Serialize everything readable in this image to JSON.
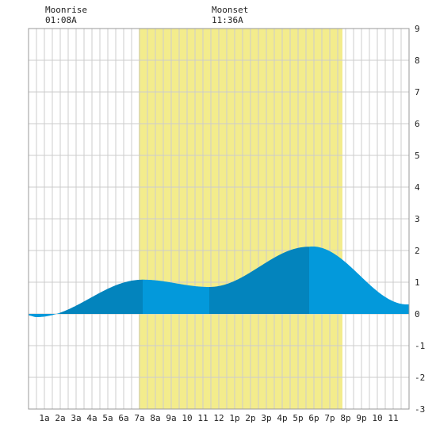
{
  "moon": {
    "rise_label": "Moonrise",
    "rise_time": "01:08A",
    "set_label": "Moonset",
    "set_time": "11:36A"
  },
  "colors": {
    "background": "#ffffff",
    "grid": "#cccccc",
    "daylight": "#f3ec8c",
    "tide_dark": "#0384bd",
    "tide_light": "#0399db"
  },
  "chart_data": {
    "type": "area",
    "title": "",
    "xlabel": "",
    "ylabel": "",
    "xlim": [
      0,
      24
    ],
    "ylim": [
      -3,
      9
    ],
    "y_ticks": [
      -3,
      -2,
      -1,
      0,
      1,
      2,
      3,
      4,
      5,
      6,
      7,
      8,
      9
    ],
    "x_ticks": [
      {
        "hour": 1,
        "label": "1a"
      },
      {
        "hour": 2,
        "label": "2a"
      },
      {
        "hour": 3,
        "label": "3a"
      },
      {
        "hour": 4,
        "label": "4a"
      },
      {
        "hour": 5,
        "label": "5a"
      },
      {
        "hour": 6,
        "label": "6a"
      },
      {
        "hour": 7,
        "label": "7a"
      },
      {
        "hour": 8,
        "label": "8a"
      },
      {
        "hour": 9,
        "label": "9a"
      },
      {
        "hour": 10,
        "label": "10"
      },
      {
        "hour": 11,
        "label": "11"
      },
      {
        "hour": 12,
        "label": "12"
      },
      {
        "hour": 13,
        "label": "1p"
      },
      {
        "hour": 14,
        "label": "2p"
      },
      {
        "hour": 15,
        "label": "3p"
      },
      {
        "hour": 16,
        "label": "4p"
      },
      {
        "hour": 17,
        "label": "5p"
      },
      {
        "hour": 18,
        "label": "6p"
      },
      {
        "hour": 19,
        "label": "7p"
      },
      {
        "hour": 20,
        "label": "8p"
      },
      {
        "hour": 21,
        "label": "9p"
      },
      {
        "hour": 22,
        "label": "10"
      },
      {
        "hour": 23,
        "label": "11"
      }
    ],
    "daylight": {
      "start": 6.95,
      "end": 19.8
    },
    "tide_extremes": [
      {
        "hour": 0.5,
        "value": -0.1
      },
      {
        "hour": 7.2,
        "value": 1.08
      },
      {
        "hour": 11.4,
        "value": 0.85
      },
      {
        "hour": 17.7,
        "value": 2.12
      }
    ],
    "tide_end": {
      "hour": 24.0,
      "value": 0.3
    },
    "tide_start": {
      "hour": 0.0,
      "value": -0.05
    },
    "shade_segments": [
      {
        "from": 0.0,
        "to": 2.0,
        "shade": "light"
      },
      {
        "from": 2.0,
        "to": 7.2,
        "shade": "dark"
      },
      {
        "from": 7.2,
        "to": 11.4,
        "shade": "light"
      },
      {
        "from": 11.4,
        "to": 17.7,
        "shade": "dark"
      },
      {
        "from": 17.7,
        "to": 24.0,
        "shade": "light"
      }
    ]
  }
}
